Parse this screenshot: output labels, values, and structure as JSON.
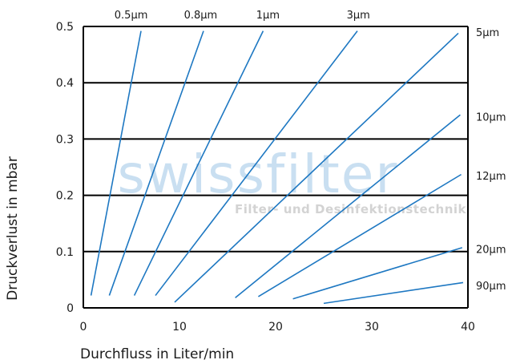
{
  "chart_data": {
    "type": "line",
    "xlabel": "Durchfluss in Liter/min",
    "ylabel": "Druckverlust in mbar",
    "xlim": [
      0,
      40
    ],
    "ylim": [
      0,
      0.5
    ],
    "xticks": [
      "0",
      "10",
      "20",
      "30",
      "40"
    ],
    "yticks": [
      "0",
      "0.1",
      "0.2",
      "0.3",
      "0.4",
      "0.5"
    ],
    "grid": "horizontal",
    "line_color": "#1e78c2",
    "watermark": {
      "title": "swissfilter",
      "subtitle": "Filter- und Desinfektionstechnik"
    },
    "series": [
      {
        "name": "0.5µm",
        "x": [
          0.8,
          6.0
        ],
        "y": [
          0.022,
          0.492
        ]
      },
      {
        "name": "0.8µm",
        "x": [
          2.7,
          12.5
        ],
        "y": [
          0.022,
          0.492
        ]
      },
      {
        "name": "1µm",
        "x": [
          5.3,
          18.7
        ],
        "y": [
          0.022,
          0.492
        ]
      },
      {
        "name": "",
        "x": [
          7.5,
          28.5
        ],
        "y": [
          0.022,
          0.492
        ]
      },
      {
        "name": "3µm",
        "x": [
          9.5,
          39.0
        ],
        "y": [
          0.01,
          0.488
        ]
      },
      {
        "name": "5µm",
        "x": [
          15.8,
          39.2
        ],
        "y": [
          0.018,
          0.343
        ]
      },
      {
        "name": "10µm",
        "x": [
          18.2,
          39.3
        ],
        "y": [
          0.02,
          0.237
        ]
      },
      {
        "name": "12µm",
        "x": [
          21.8,
          39.4
        ],
        "y": [
          0.016,
          0.107
        ]
      },
      {
        "name": "20µm",
        "x": [
          25.0,
          39.5
        ],
        "y": [
          0.008,
          0.045
        ]
      }
    ],
    "series_labels": [
      "0.5µm",
      "0.8µm",
      "1µm",
      "3µm",
      "5µm",
      "10µm",
      "12µm",
      "20µm",
      "90µm"
    ]
  }
}
